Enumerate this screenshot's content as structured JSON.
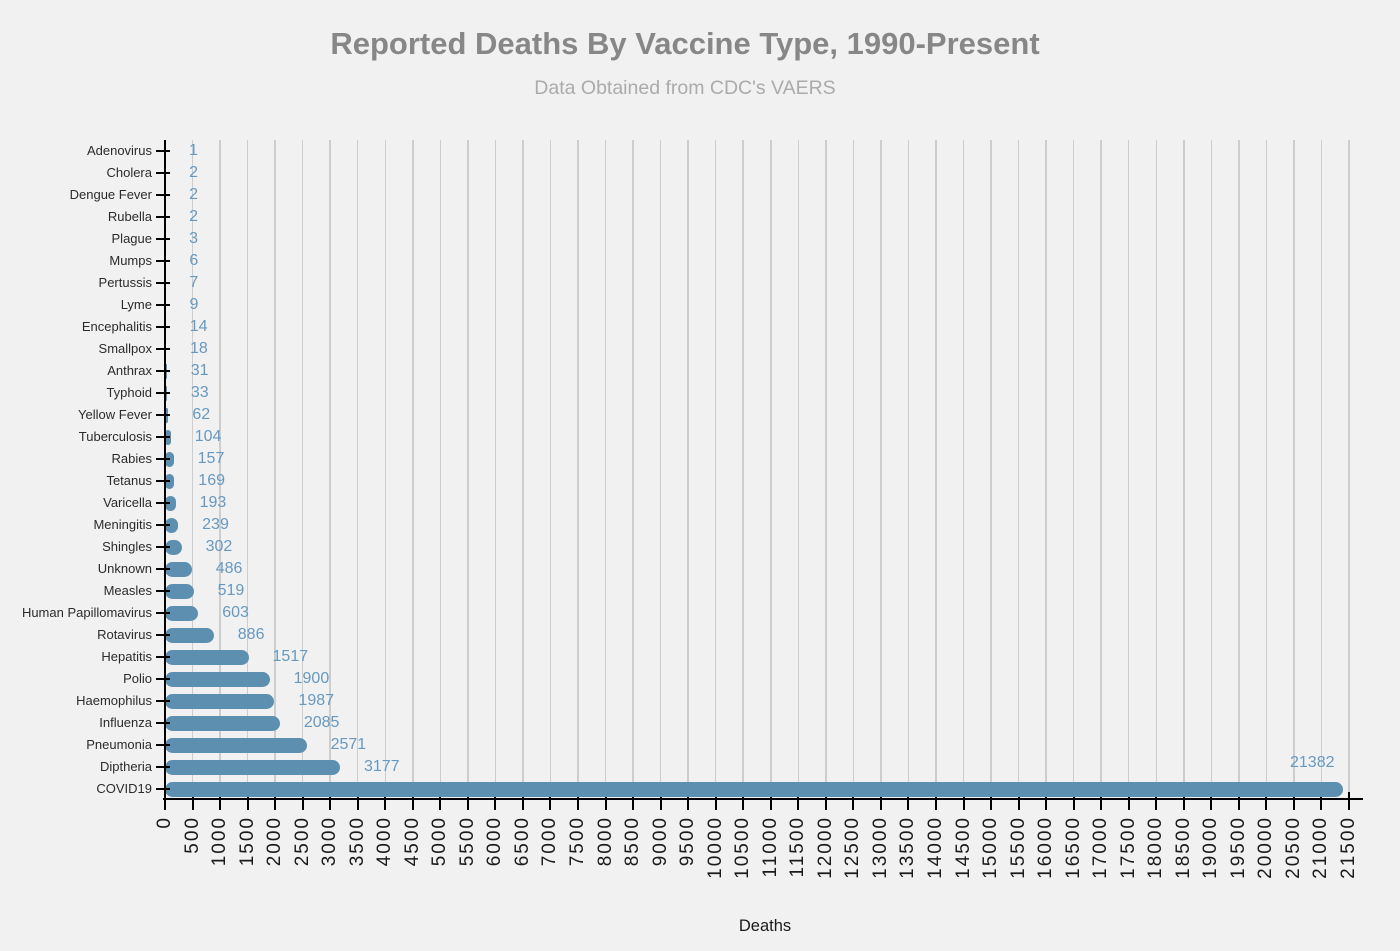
{
  "title": "Reported Deaths By Vaccine Type, 1990-Present",
  "subtitle": "Data Obtained from CDC's VAERS",
  "xlabel": "Deaths",
  "colors": {
    "background": "#f1f1f1",
    "bar": "#5c8fb0",
    "value_label": "#6699c0",
    "grid": "#cdcdcd",
    "axis": "#000000",
    "title": "#878787",
    "subtitle": "#ababab",
    "category_label": "#2b2b2b",
    "tick_label": "#1a1a1a"
  },
  "chart_data": {
    "type": "bar",
    "orientation": "horizontal",
    "title": "Reported Deaths By Vaccine Type, 1990-Present",
    "subtitle": "Data Obtained from CDC's VAERS",
    "xlabel": "Deaths",
    "ylabel": "",
    "xlim": [
      0,
      21500
    ],
    "xtick_step": 500,
    "grid": true,
    "legend": false,
    "categories": [
      "Adenovirus",
      "Cholera",
      "Dengue Fever",
      "Rubella",
      "Plague",
      "Mumps",
      "Pertussis",
      "Lyme",
      "Encephalitis",
      "Smallpox",
      "Anthrax",
      "Typhoid",
      "Yellow Fever",
      "Tuberculosis",
      "Rabies",
      "Tetanus",
      "Varicella",
      "Meningitis",
      "Shingles",
      "Unknown",
      "Measles",
      "Human Papillomavirus",
      "Rotavirus",
      "Hepatitis",
      "Polio",
      "Haemophilus",
      "Influenza",
      "Pneumonia",
      "Diptheria",
      "COVID19"
    ],
    "values": [
      1,
      2,
      2,
      2,
      3,
      6,
      7,
      9,
      14,
      18,
      31,
      33,
      62,
      104,
      157,
      169,
      193,
      239,
      302,
      486,
      519,
      603,
      886,
      1517,
      1900,
      1987,
      2085,
      2571,
      3177,
      21382
    ]
  }
}
